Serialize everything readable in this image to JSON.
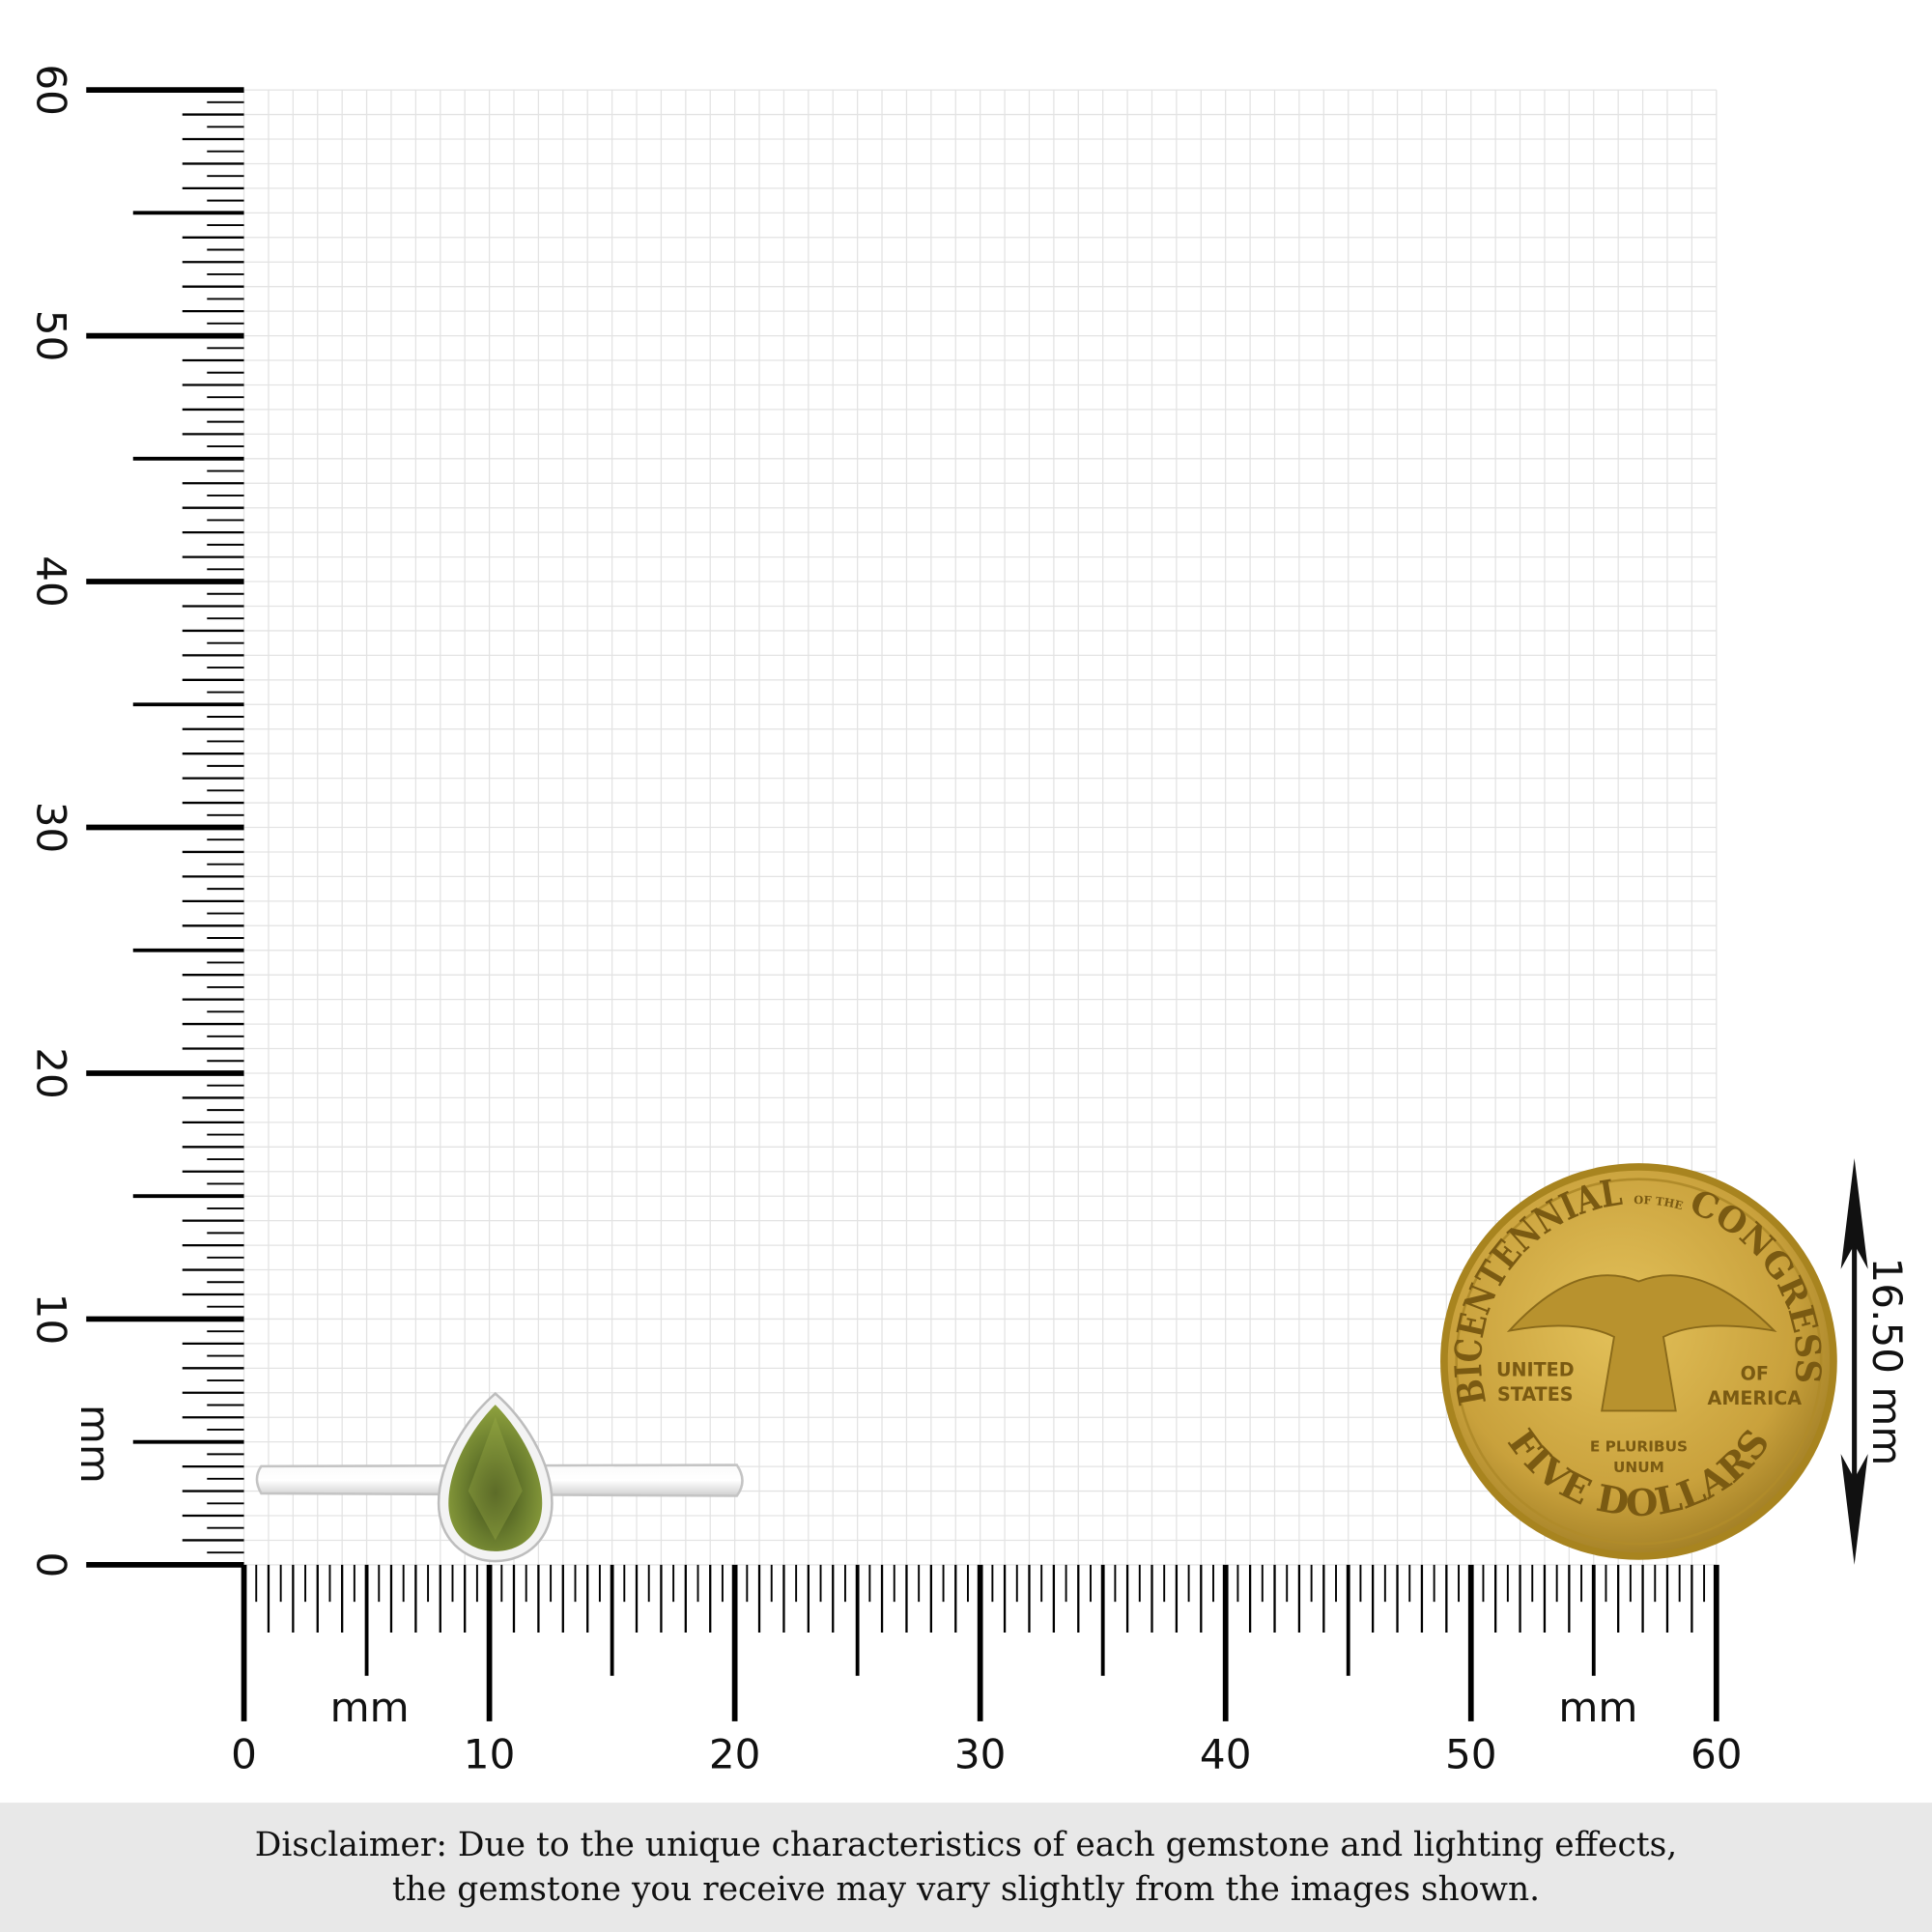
{
  "ruler": {
    "unit": "mm",
    "min": 0,
    "max": 60,
    "major_step": 10,
    "minor_step": 0.5,
    "x_labels": [
      "0",
      "10",
      "20",
      "30",
      "40",
      "50",
      "60"
    ],
    "y_labels": [
      "0",
      "10",
      "20",
      "30",
      "40",
      "50",
      "60"
    ],
    "x_unit_label": "mm",
    "x_unit_label_right": "mm",
    "y_unit_label": "mm"
  },
  "grid": {
    "step_mm": 1,
    "color": "#e3e3e3"
  },
  "coin": {
    "top_text": "BICENTENNIAL",
    "of_the": "OF THE",
    "congress": "CONGRESS",
    "left_text": [
      "UNITED",
      "STATES"
    ],
    "right_text": [
      "OF",
      "AMERICA"
    ],
    "motto": [
      "E PLURIBUS",
      "UNUM"
    ],
    "bottom_text": "FIVE DOLLARS",
    "color": "#c9a13c"
  },
  "measurement": {
    "label": "16.50 mm"
  },
  "product": {
    "stone_color": "#5d6e2a",
    "metal_color": "#e9e9e9"
  },
  "disclaimer": {
    "line1": "Disclaimer: Due to the unique characteristics of each gemstone and lighting effects,",
    "line2": "the gemstone you receive may vary slightly from the images shown."
  }
}
